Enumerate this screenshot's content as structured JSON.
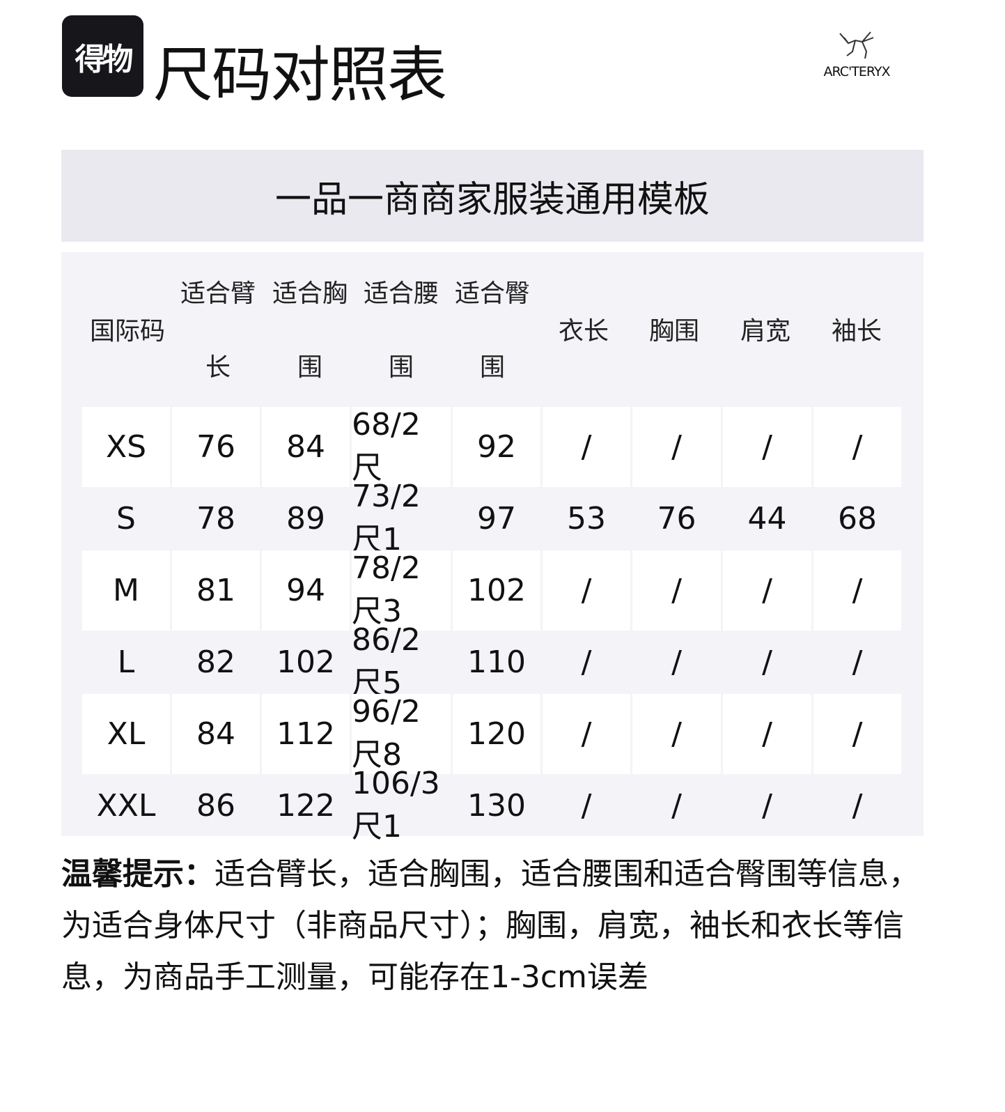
{
  "header": {
    "logo_text": "得物",
    "title": "尺码对照表",
    "brand": "ARC'TERYX"
  },
  "band_title": "一品一商商家服装通用模板",
  "table": {
    "headers": [
      {
        "top": "",
        "mid": "国际码",
        "bottom": ""
      },
      {
        "top": "适合臂",
        "mid": "",
        "bottom": "长"
      },
      {
        "top": "适合胸",
        "mid": "",
        "bottom": "围"
      },
      {
        "top": "适合腰",
        "mid": "",
        "bottom": "围"
      },
      {
        "top": "适合臀",
        "mid": "",
        "bottom": "围"
      },
      {
        "top": "",
        "mid": "衣长",
        "bottom": ""
      },
      {
        "top": "",
        "mid": "胸围",
        "bottom": ""
      },
      {
        "top": "",
        "mid": "肩宽",
        "bottom": ""
      },
      {
        "top": "",
        "mid": "袖长",
        "bottom": ""
      }
    ],
    "rows": [
      [
        "XS",
        "76",
        "84",
        "68/2尺",
        "92",
        "/",
        "/",
        "/",
        "/"
      ],
      [
        "S",
        "78",
        "89",
        "73/2尺1",
        "97",
        "53",
        "76",
        "44",
        "68"
      ],
      [
        "M",
        "81",
        "94",
        "78/2尺3",
        "102",
        "/",
        "/",
        "/",
        "/"
      ],
      [
        "L",
        "82",
        "102",
        "86/2尺5",
        "110",
        "/",
        "/",
        "/",
        "/"
      ],
      [
        "XL",
        "84",
        "112",
        "96/2尺8",
        "120",
        "/",
        "/",
        "/",
        "/"
      ],
      [
        "XXL",
        "86",
        "122",
        "106/3尺1",
        "130",
        "/",
        "/",
        "/",
        "/"
      ]
    ]
  },
  "tip": {
    "label": "温馨提示：",
    "text": "适合臂长，适合胸围，适合腰围和适合臀围等信息，为适合身体尺寸（非商品尺寸）；胸围，肩宽，袖长和衣长等信息，为商品手工测量，可能存在1-3cm误差"
  }
}
